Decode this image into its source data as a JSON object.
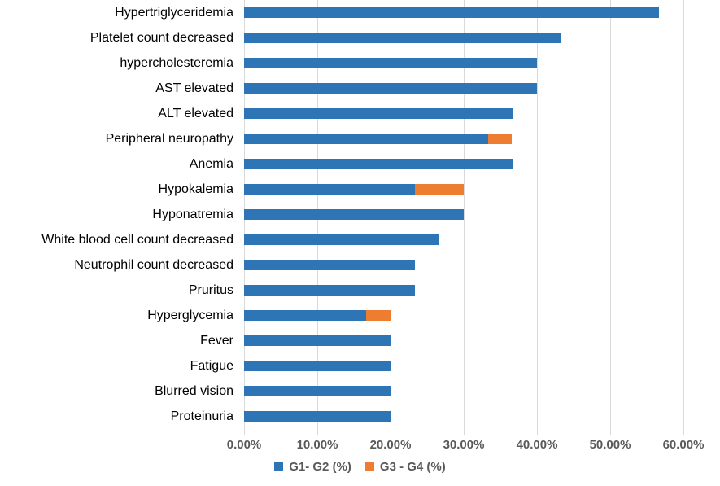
{
  "chart_data": {
    "type": "bar",
    "orientation": "horizontal",
    "stacked": true,
    "title": "",
    "xlabel": "",
    "ylabel": "",
    "categories": [
      "Hypertriglyceridemia",
      "Platelet count decreased",
      "hypercholesteremia",
      "AST elevated",
      "ALT elevated",
      "Peripheral neuropathy",
      "Anemia",
      "Hypokalemia",
      "Hyponatremia",
      "White blood cell count decreased",
      "Neutrophil count decreased",
      "Pruritus",
      "Hyperglycemia",
      "Fever",
      "Fatigue",
      "Blurred vision",
      "Proteinuria"
    ],
    "series": [
      {
        "name": "G1- G2 (%)",
        "color": "#2E75B6",
        "values": [
          56.7,
          43.3,
          40.0,
          40.0,
          36.7,
          33.3,
          36.7,
          23.3,
          30.0,
          26.7,
          23.3,
          23.3,
          16.7,
          20.0,
          20.0,
          20.0,
          20.0
        ]
      },
      {
        "name": "G3 - G4 (%)",
        "color": "#ED7D31",
        "values": [
          0,
          0,
          0,
          0,
          0,
          3.3,
          0,
          6.7,
          0,
          0,
          0,
          0,
          3.3,
          0,
          0,
          0,
          0
        ]
      }
    ],
    "xlim": [
      0,
      60
    ],
    "x_ticks": [
      {
        "value": 0,
        "label": "0.00%"
      },
      {
        "value": 10,
        "label": "10.00%"
      },
      {
        "value": 20,
        "label": "20.00%"
      },
      {
        "value": 30,
        "label": "30.00%"
      },
      {
        "value": 40,
        "label": "40.00%"
      },
      {
        "value": 50,
        "label": "50.00%"
      },
      {
        "value": 60,
        "label": "60.00%"
      }
    ],
    "grid": "vertical",
    "gridline_color": "#D9D9D9",
    "axis_label_color": "#595959",
    "category_label_color": "#000000",
    "legend_position": "bottom"
  }
}
